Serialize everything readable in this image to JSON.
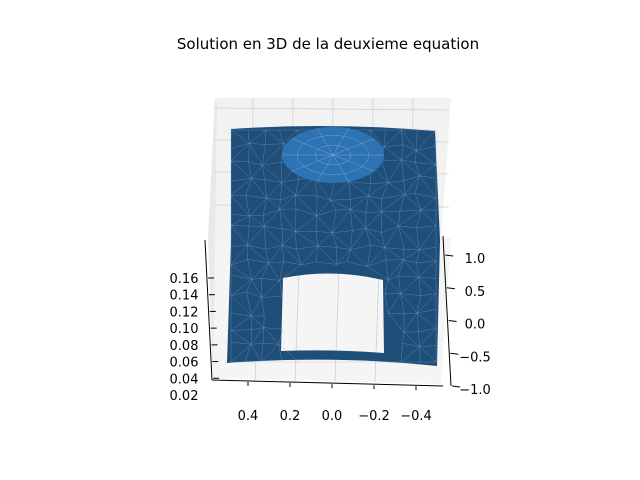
{
  "chart_data": {
    "type": "surface3d",
    "title": "Solution en 3D de la deuxieme equation",
    "x_axis": {
      "ticks": [
        0.4,
        0.2,
        0.0,
        -0.2,
        -0.4
      ],
      "tick_labels": [
        "0.4",
        "0.2",
        "0.0",
        "−0.2",
        "−0.4"
      ],
      "range": [
        0.5,
        -0.5
      ]
    },
    "y_axis": {
      "ticks": [
        1.0,
        0.5,
        0.0,
        -0.5,
        -1.0
      ],
      "tick_labels": [
        "1.0",
        "0.5",
        "0.0",
        "−0.5",
        "−1.0"
      ],
      "range": [
        1.0,
        -1.0
      ]
    },
    "z_axis": {
      "ticks": [
        0.16,
        0.14,
        0.12,
        0.1,
        0.08,
        0.06,
        0.04,
        0.02
      ],
      "tick_labels": [
        "0.16",
        "0.14",
        "0.12",
        "0.10",
        "0.08",
        "0.06",
        "0.04",
        "0.02"
      ],
      "range": [
        0.02,
        0.17
      ]
    },
    "surface": {
      "domain": "rectangle x in [-0.5, 0.5], y in [-1, 1] with a rectangular hole near the bottom",
      "peak_region": "raised disc near the top center",
      "color": "#1f4e79",
      "highlight_color": "#2e75b6",
      "mesh_color": "#8fb3d9"
    },
    "grid": true,
    "pane_color": "#f2f2f2"
  }
}
